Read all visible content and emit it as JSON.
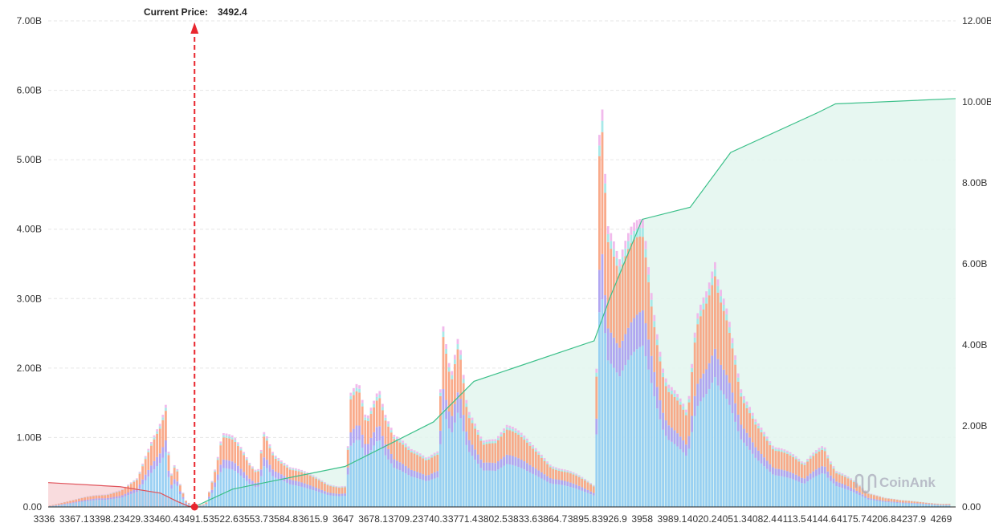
{
  "chart_data": {
    "type": "bar",
    "title": "",
    "current_price_label": "Current Price:",
    "current_price": "3492.4",
    "current_price_value": 3492.4,
    "x_tick_labels": [
      "3336",
      "3367.1",
      "3398.2",
      "3429.3",
      "3460.4",
      "3491.5",
      "3522.6",
      "3553.7",
      "3584.8",
      "3615.9",
      "3647",
      "3678.1",
      "3709.2",
      "3740.3",
      "3771.4",
      "3802.5",
      "3833.6",
      "3864.7",
      "3895.8",
      "3926.9",
      "3958",
      "3989.1",
      "4020.2",
      "4051.3",
      "4082.4",
      "4113.5",
      "4144.6",
      "4175.7",
      "4206.8",
      "4237.9",
      "4269"
    ],
    "xlim": [
      3336,
      4269
    ],
    "left_y_tick_labels": [
      "0.00",
      "1.00B",
      "2.00B",
      "3.00B",
      "4.00B",
      "5.00B",
      "6.00B",
      "7.00B"
    ],
    "left_ylim_billions": [
      0,
      7
    ],
    "right_y_tick_labels": [
      "0.00",
      "2.00B",
      "4.00B",
      "6.00B",
      "8.00B",
      "10.00B",
      "12.00B"
    ],
    "right_ylim_billions": [
      0,
      12
    ],
    "grid": "horizontal dashed",
    "liquidation_bars_envelope_billions": [
      [
        3340,
        0.02
      ],
      [
        3365,
        0.1
      ],
      [
        3390,
        0.2
      ],
      [
        3415,
        0.25
      ],
      [
        3432,
        0.4
      ],
      [
        3445,
        0.9
      ],
      [
        3457,
        1.4
      ],
      [
        3461,
        1.7
      ],
      [
        3464,
        0.9
      ],
      [
        3467,
        0.5
      ],
      [
        3472,
        0.7
      ],
      [
        3475,
        0.4
      ],
      [
        3482,
        0.1
      ],
      [
        3491,
        0
      ],
      [
        3503,
        0.05
      ],
      [
        3511,
        0.5
      ],
      [
        3520,
        1.15
      ],
      [
        3532,
        1.0
      ],
      [
        3549,
        0.6
      ],
      [
        3557,
        0.5
      ],
      [
        3564,
        1.2
      ],
      [
        3574,
        0.9
      ],
      [
        3591,
        0.6
      ],
      [
        3607,
        0.5
      ],
      [
        3624,
        0.4
      ],
      [
        3641,
        0.3
      ],
      [
        3649,
        0.3
      ],
      [
        3653,
        1.6
      ],
      [
        3662,
        1.8
      ],
      [
        3670,
        1.3
      ],
      [
        3683,
        2.0
      ],
      [
        3691,
        1.5
      ],
      [
        3699,
        1.1
      ],
      [
        3716,
        0.8
      ],
      [
        3733,
        0.7
      ],
      [
        3745,
        0.9
      ],
      [
        3749,
        3.0
      ],
      [
        3758,
        2.0
      ],
      [
        3766,
        2.6
      ],
      [
        3775,
        1.5
      ],
      [
        3791,
        1.0
      ],
      [
        3816,
        1.2
      ],
      [
        3841,
        0.9
      ],
      [
        3875,
        0.6
      ],
      [
        3908,
        0.3
      ],
      [
        3912,
        5.5
      ],
      [
        3915,
        6.2
      ],
      [
        3921,
        4.5
      ],
      [
        3933,
        3.6
      ],
      [
        3946,
        4.0
      ],
      [
        3958,
        4.3
      ],
      [
        3971,
        3.0
      ],
      [
        3983,
        2.0
      ],
      [
        4004,
        1.3
      ],
      [
        4013,
        2.6
      ],
      [
        4025,
        3.2
      ],
      [
        4033,
        3.9
      ],
      [
        4046,
        3.0
      ],
      [
        4059,
        1.8
      ],
      [
        4075,
        1.3
      ],
      [
        4092,
        1.0
      ],
      [
        4125,
        0.6
      ],
      [
        4146,
        1.0
      ],
      [
        4159,
        0.6
      ],
      [
        4192,
        0.2
      ],
      [
        4226,
        0.1
      ],
      [
        4269,
        0.05
      ]
    ],
    "stack_colors": [
      "#8fcbf2",
      "#a99cf0",
      "#f8a17d",
      "#9fe6e6",
      "#f0b2ea"
    ],
    "cumulative_short_liquidation": {
      "color": "#e0525a",
      "fill": "#f8d6d8",
      "points": [
        [
          3340,
          0.6
        ],
        [
          3415,
          0.5
        ],
        [
          3457,
          0.34
        ],
        [
          3474,
          0.14
        ],
        [
          3486,
          0.02
        ],
        [
          3491,
          0
        ]
      ]
    },
    "cumulative_long_liquidation": {
      "color": "#3cc08a",
      "fill": "#e3f6ee",
      "points": [
        [
          3492,
          0
        ],
        [
          3532,
          0.44
        ],
        [
          3649,
          1.0
        ],
        [
          3741,
          2.1
        ],
        [
          3783,
          3.1
        ],
        [
          3908,
          4.1
        ],
        [
          3925,
          5.2
        ],
        [
          3958,
          7.1
        ],
        [
          4008,
          7.4
        ],
        [
          4050,
          8.75
        ],
        [
          4142,
          9.75
        ],
        [
          4159,
          9.95
        ],
        [
          4284,
          10.08
        ]
      ]
    },
    "watermark": "CoinAnk",
    "current_price_marker_color": "#e8262e"
  }
}
